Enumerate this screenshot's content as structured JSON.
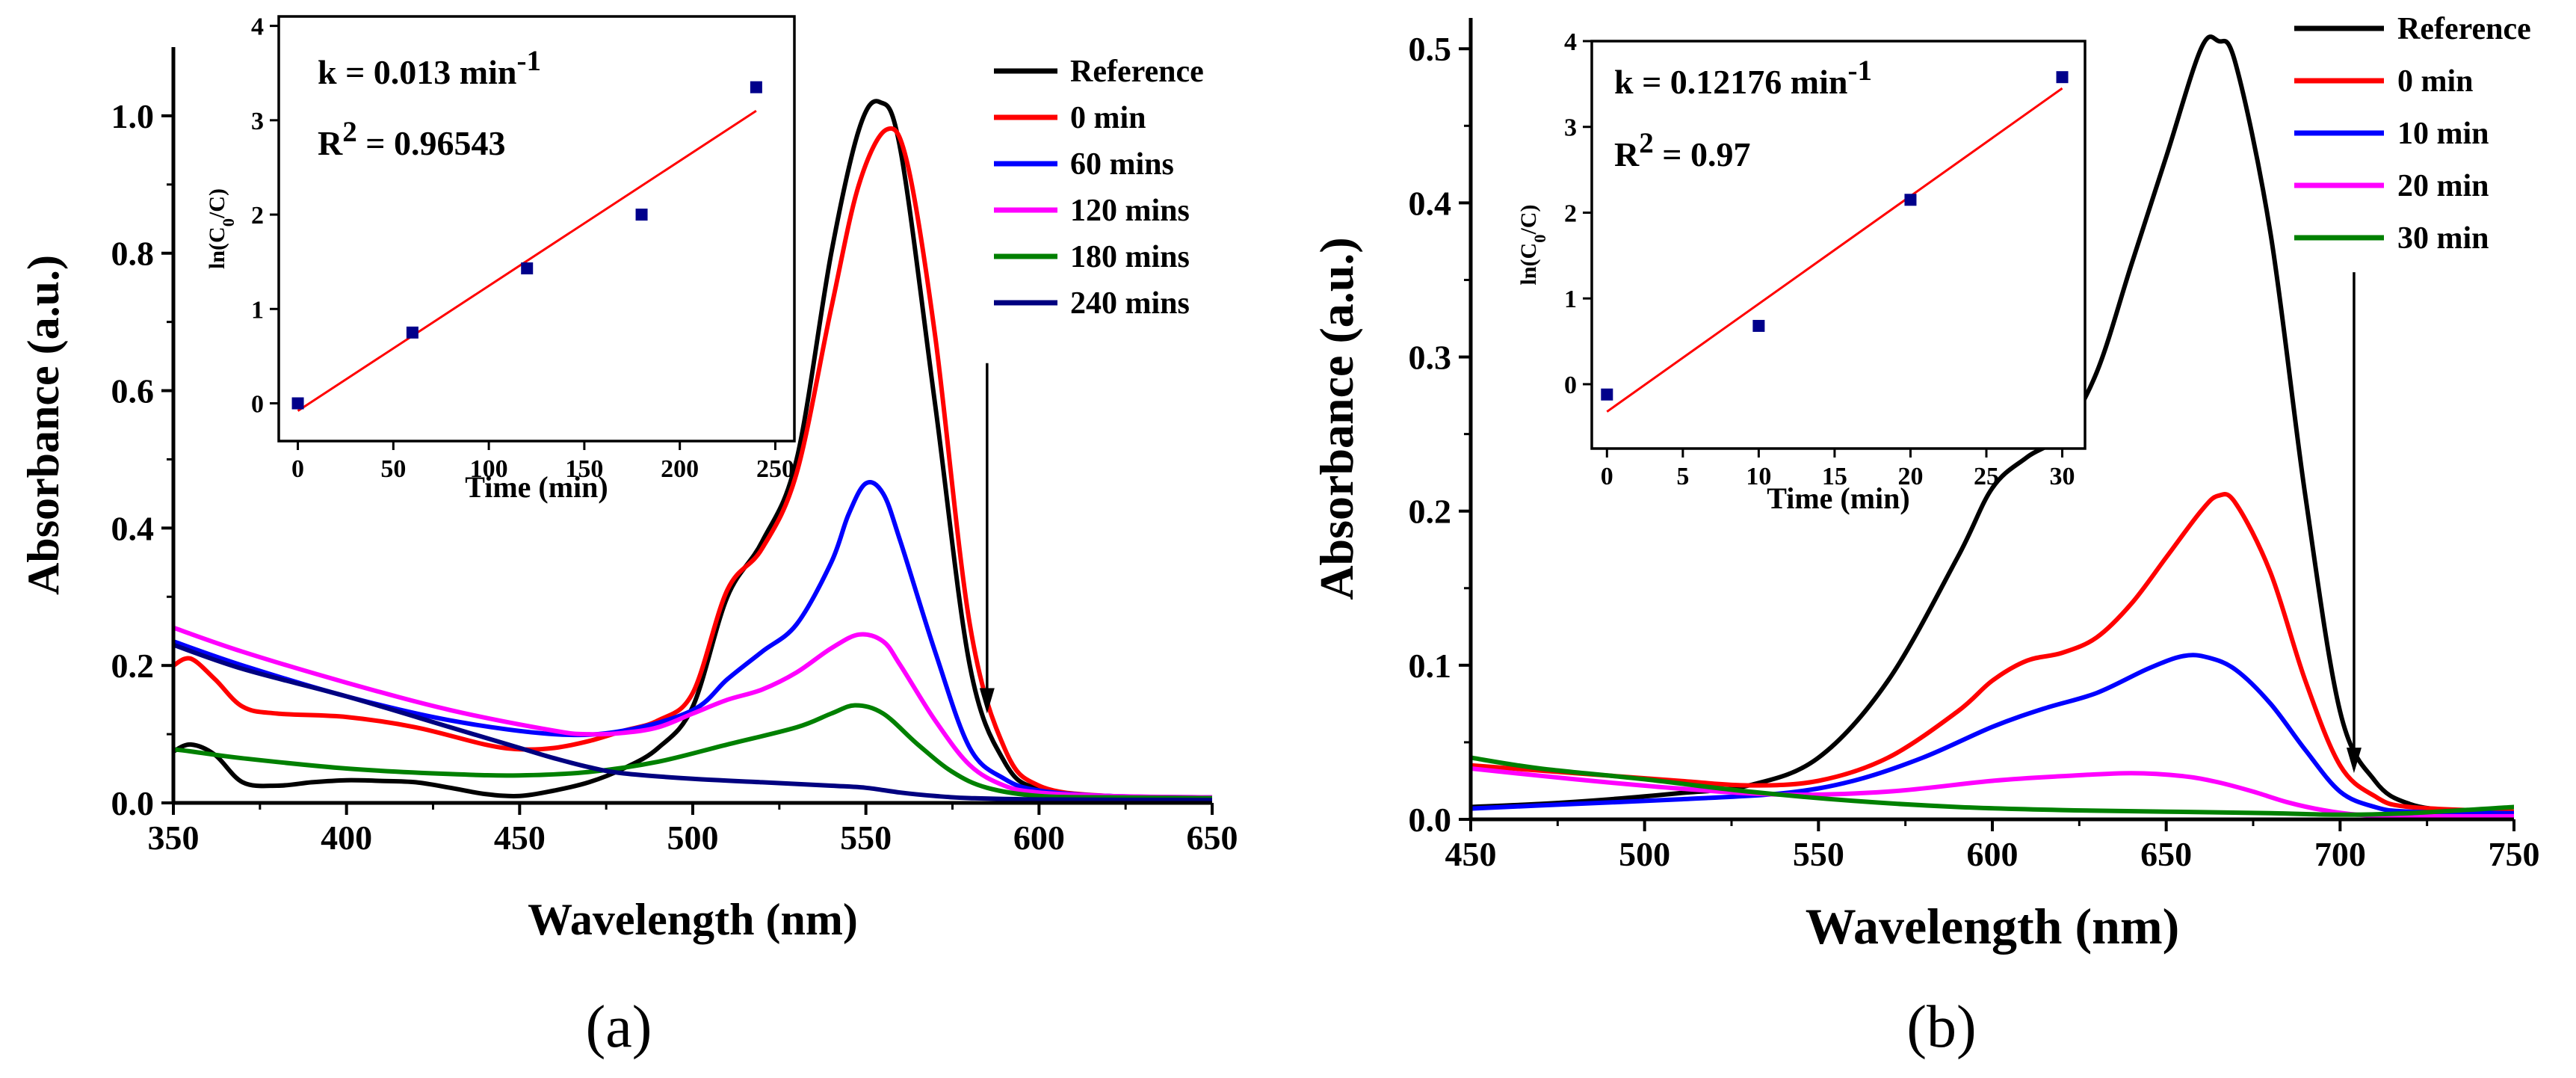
{
  "figure": {
    "panel_labels": [
      "(a)",
      "(b)"
    ]
  },
  "chart_data": [
    {
      "id": "a",
      "type": "line",
      "title": "",
      "xlabel": "Wavelength (nm)",
      "ylabel": "Absorbance (a.u.)",
      "xlim": [
        350,
        650
      ],
      "ylim": [
        0,
        1.1
      ],
      "xticks": [
        350,
        400,
        450,
        500,
        550,
        600,
        650
      ],
      "yticks": [
        0.0,
        0.2,
        0.4,
        0.6,
        0.8,
        1.0
      ],
      "ytick_labels": [
        "0.0",
        "0.2",
        "0.4",
        "0.6",
        "0.8",
        "1.0"
      ],
      "legend_position": "top-right",
      "arrow": {
        "x": 585,
        "y_from": 0.64,
        "y_to": 0.13,
        "meaning": "decreasing absorbance with time"
      },
      "series": [
        {
          "name": "Reference",
          "color": "#000000",
          "x": [
            350,
            355,
            362,
            370,
            380,
            390,
            400,
            410,
            420,
            430,
            440,
            450,
            460,
            470,
            480,
            490,
            500,
            510,
            520,
            530,
            540,
            548,
            554,
            560,
            570,
            580,
            590,
            600,
            620,
            650
          ],
          "y": [
            0.075,
            0.085,
            0.07,
            0.03,
            0.025,
            0.03,
            0.033,
            0.032,
            0.03,
            0.022,
            0.013,
            0.01,
            0.018,
            0.03,
            0.05,
            0.08,
            0.14,
            0.3,
            0.38,
            0.5,
            0.8,
            0.98,
            1.02,
            0.95,
            0.58,
            0.2,
            0.06,
            0.02,
            0.01,
            0.008
          ]
        },
        {
          "name": "0 min",
          "color": "#ff0000",
          "x": [
            350,
            355,
            362,
            370,
            380,
            400,
            420,
            440,
            450,
            460,
            470,
            480,
            490,
            500,
            510,
            520,
            530,
            540,
            548,
            556,
            562,
            570,
            580,
            590,
            600,
            620,
            650
          ],
          "y": [
            0.2,
            0.21,
            0.18,
            0.14,
            0.13,
            0.125,
            0.11,
            0.085,
            0.078,
            0.08,
            0.09,
            0.105,
            0.12,
            0.16,
            0.31,
            0.37,
            0.48,
            0.72,
            0.9,
            0.98,
            0.93,
            0.68,
            0.26,
            0.08,
            0.025,
            0.01,
            0.008
          ]
        },
        {
          "name": "60 mins",
          "color": "#0000ff",
          "x": [
            350,
            370,
            400,
            430,
            460,
            480,
            500,
            510,
            520,
            530,
            540,
            545,
            550,
            555,
            560,
            570,
            580,
            590,
            600,
            620,
            650
          ],
          "y": [
            0.235,
            0.2,
            0.155,
            0.12,
            0.1,
            0.105,
            0.135,
            0.18,
            0.22,
            0.26,
            0.35,
            0.42,
            0.465,
            0.45,
            0.38,
            0.22,
            0.08,
            0.035,
            0.018,
            0.01,
            0.008
          ]
        },
        {
          "name": "120 mins",
          "color": "#ff00ff",
          "x": [
            350,
            370,
            400,
            430,
            460,
            470,
            480,
            490,
            500,
            510,
            520,
            530,
            540,
            548,
            555,
            560,
            570,
            580,
            590,
            600,
            620,
            650
          ],
          "y": [
            0.255,
            0.22,
            0.175,
            0.135,
            0.105,
            0.1,
            0.102,
            0.11,
            0.13,
            0.15,
            0.165,
            0.19,
            0.225,
            0.245,
            0.235,
            0.2,
            0.12,
            0.055,
            0.025,
            0.015,
            0.01,
            0.008
          ]
        },
        {
          "name": "180 mins",
          "color": "#008000",
          "x": [
            350,
            355,
            370,
            400,
            430,
            450,
            470,
            490,
            510,
            530,
            540,
            547,
            555,
            565,
            575,
            585,
            600,
            620,
            650
          ],
          "y": [
            0.078,
            0.075,
            0.065,
            0.05,
            0.042,
            0.04,
            0.045,
            0.06,
            0.085,
            0.11,
            0.13,
            0.142,
            0.13,
            0.085,
            0.045,
            0.022,
            0.01,
            0.008,
            0.007
          ]
        },
        {
          "name": "240 mins",
          "color": "#000080",
          "x": [
            350,
            370,
            400,
            430,
            450,
            460,
            470,
            480,
            500,
            520,
            540,
            550,
            560,
            570,
            580,
            600,
            650
          ],
          "y": [
            0.23,
            0.195,
            0.155,
            0.11,
            0.08,
            0.065,
            0.052,
            0.043,
            0.035,
            0.03,
            0.025,
            0.022,
            0.015,
            0.01,
            0.007,
            0.005,
            0.004
          ]
        }
      ],
      "inset": {
        "type": "scatter",
        "xlabel": "Time (min)",
        "ylabel": "ln(C0/C)",
        "xlim": [
          -10,
          260
        ],
        "ylim": [
          -0.4,
          4.1
        ],
        "xticks": [
          0,
          50,
          100,
          150,
          200,
          250
        ],
        "yticks": [
          0,
          1,
          2,
          3,
          4
        ],
        "points": {
          "x": [
            0,
            60,
            120,
            180,
            240
          ],
          "y": [
            0.0,
            0.75,
            1.43,
            2.0,
            3.35
          ],
          "color": "#00008b"
        },
        "fit": {
          "x": [
            0,
            240
          ],
          "y": [
            -0.08,
            3.1
          ],
          "color": "#ff0000"
        },
        "annotations": [
          {
            "prefix": "k = 0.013 min",
            "sup": "-1"
          },
          {
            "prefix": "R",
            "sup": "2",
            "suffix": " = 0.96543"
          }
        ]
      }
    },
    {
      "id": "b",
      "type": "line",
      "title": "",
      "xlabel": "Wavelength (nm)",
      "ylabel": "Absorbance (a.u.)",
      "xlim": [
        450,
        750
      ],
      "ylim": [
        0,
        0.52
      ],
      "xticks": [
        450,
        500,
        550,
        600,
        650,
        700,
        750
      ],
      "yticks": [
        0.0,
        0.1,
        0.2,
        0.3,
        0.4,
        0.5
      ],
      "ytick_labels": [
        "0.0",
        "0.1",
        "0.2",
        "0.3",
        "0.4",
        "0.5"
      ],
      "legend_position": "top-right",
      "arrow": {
        "x": 704,
        "y_from": 0.355,
        "y_to": 0.03,
        "meaning": "decreasing absorbance with time"
      },
      "series": [
        {
          "name": "Reference",
          "color": "#000000",
          "x": [
            450,
            470,
            490,
            510,
            530,
            550,
            570,
            590,
            600,
            610,
            620,
            630,
            640,
            650,
            660,
            665,
            670,
            680,
            690,
            700,
            710,
            720,
            735,
            750
          ],
          "y": [
            0.008,
            0.01,
            0.013,
            0.017,
            0.022,
            0.04,
            0.09,
            0.17,
            0.215,
            0.235,
            0.25,
            0.29,
            0.36,
            0.43,
            0.5,
            0.505,
            0.49,
            0.38,
            0.21,
            0.07,
            0.025,
            0.01,
            0.005,
            0.004
          ]
        },
        {
          "name": "0 min",
          "color": "#ff0000",
          "x": [
            450,
            480,
            510,
            530,
            550,
            570,
            590,
            600,
            610,
            620,
            630,
            640,
            650,
            660,
            665,
            670,
            680,
            690,
            700,
            710,
            720,
            750
          ],
          "y": [
            0.035,
            0.03,
            0.025,
            0.022,
            0.025,
            0.04,
            0.07,
            0.09,
            0.103,
            0.108,
            0.118,
            0.14,
            0.17,
            0.2,
            0.21,
            0.205,
            0.16,
            0.09,
            0.035,
            0.015,
            0.008,
            0.005
          ]
        },
        {
          "name": "10 min",
          "color": "#0000ff",
          "x": [
            450,
            480,
            510,
            540,
            560,
            580,
            600,
            615,
            630,
            645,
            655,
            662,
            670,
            680,
            690,
            700,
            710,
            720,
            750
          ],
          "y": [
            0.007,
            0.01,
            0.013,
            0.017,
            0.025,
            0.04,
            0.06,
            0.072,
            0.082,
            0.098,
            0.106,
            0.105,
            0.097,
            0.075,
            0.045,
            0.018,
            0.008,
            0.005,
            0.004
          ]
        },
        {
          "name": "20 min",
          "color": "#ff00ff",
          "x": [
            450,
            480,
            510,
            540,
            570,
            600,
            620,
            640,
            655,
            665,
            675,
            685,
            695,
            705,
            720,
            750
          ],
          "y": [
            0.033,
            0.026,
            0.02,
            0.016,
            0.018,
            0.025,
            0.028,
            0.03,
            0.028,
            0.024,
            0.018,
            0.011,
            0.006,
            0.003,
            0.002,
            0.002
          ]
        },
        {
          "name": "30 min",
          "color": "#008000",
          "x": [
            450,
            470,
            500,
            530,
            560,
            590,
            620,
            650,
            680,
            700,
            720,
            750
          ],
          "y": [
            0.04,
            0.033,
            0.026,
            0.018,
            0.012,
            0.008,
            0.006,
            0.005,
            0.004,
            0.003,
            0.004,
            0.008
          ]
        }
      ],
      "inset": {
        "type": "scatter",
        "xlabel": "Time (min)",
        "ylabel": "ln(C0/C)",
        "xlim": [
          -1,
          31.5
        ],
        "ylim": [
          -0.75,
          4
        ],
        "xticks": [
          0,
          5,
          10,
          15,
          20,
          25,
          30
        ],
        "yticks": [
          0,
          1,
          2,
          3,
          4
        ],
        "points": {
          "x": [
            0,
            10,
            20,
            30
          ],
          "y": [
            -0.12,
            0.68,
            2.15,
            3.58
          ],
          "color": "#00008b"
        },
        "fit": {
          "x": [
            0,
            30
          ],
          "y": [
            -0.32,
            3.45
          ],
          "color": "#ff0000"
        },
        "annotations": [
          {
            "prefix": "k = 0.12176 min",
            "sup": "-1"
          },
          {
            "prefix": "R",
            "sup": "2",
            "suffix": " = 0.97"
          }
        ]
      }
    }
  ]
}
